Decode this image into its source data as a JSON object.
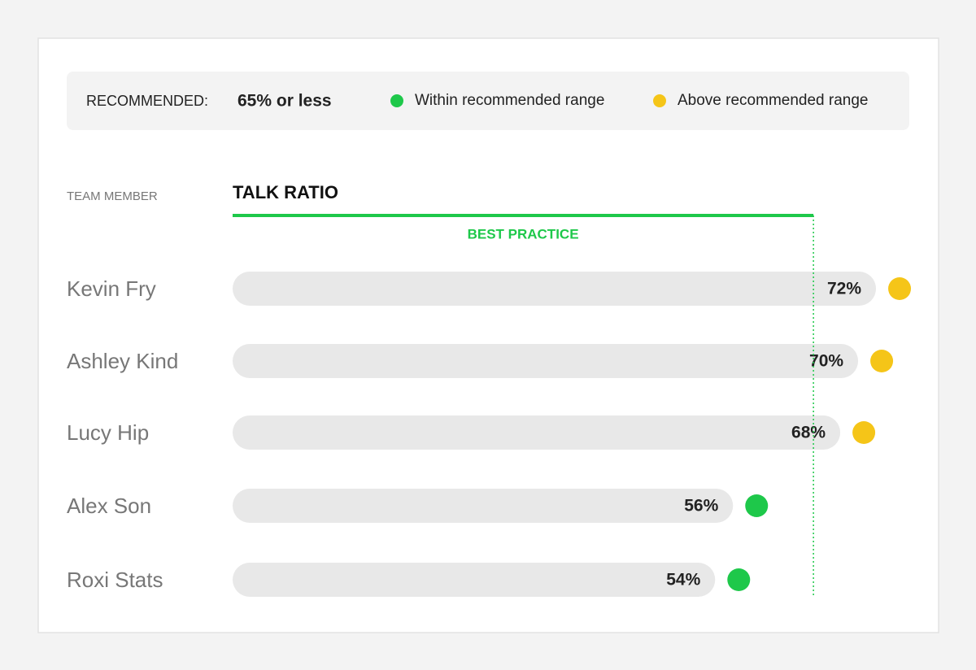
{
  "chart_data": {
    "type": "bar",
    "recommended_label": "RECOMMENDED:",
    "threshold": {
      "value": 65,
      "label": "65% or less"
    },
    "legend": [
      {
        "name": "Within recommended range",
        "color": "#1ec84a"
      },
      {
        "name": "Above recommended range",
        "color": "#f5c518"
      }
    ],
    "category_header": "TEAM MEMBER",
    "title": "TALK RATIO",
    "threshold_caption": "BEST PRACTICE",
    "categories": [
      "Kevin Fry",
      "Ashley Kind",
      "Lucy Hip",
      "Alex Son",
      "Roxi Stats"
    ],
    "values": [
      72,
      70,
      68,
      56,
      54
    ],
    "value_labels": [
      "72%",
      "70%",
      "68%",
      "56%",
      "54%"
    ],
    "xlim": [
      0,
      75
    ],
    "bar_color": "#e8e8e8"
  }
}
